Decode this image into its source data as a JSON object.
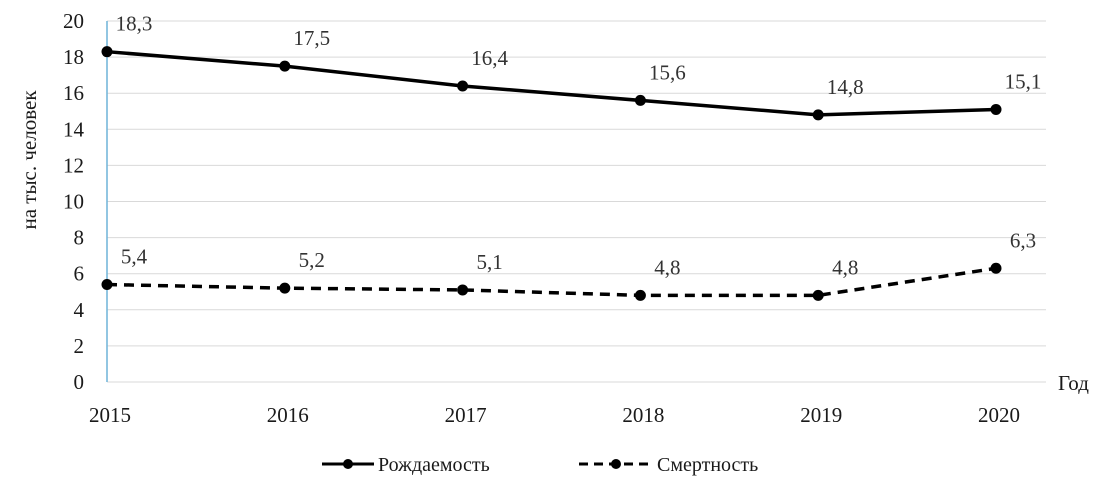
{
  "chart_data": {
    "type": "line",
    "title": "",
    "xlabel": "Год",
    "ylabel": "на тыс. человек",
    "x": [
      "2015",
      "2016",
      "2017",
      "2018",
      "2019",
      "2020"
    ],
    "ylim": [
      0,
      20
    ],
    "yticks": [
      "0",
      "2",
      "4",
      "6",
      "8",
      "10",
      "12",
      "14",
      "16",
      "18",
      "20"
    ],
    "grid": true,
    "legend_position": "bottom",
    "series": [
      {
        "name": "Рождаемость",
        "values": [
          18.3,
          17.5,
          16.4,
          15.6,
          14.8,
          15.1
        ],
        "labels": [
          "18,3",
          "17,5",
          "16,4",
          "15,6",
          "14,8",
          "15,1"
        ],
        "line_style": "solid",
        "color": "#000000"
      },
      {
        "name": "Смертность",
        "values": [
          5.4,
          5.2,
          5.1,
          4.8,
          4.8,
          6.3
        ],
        "labels": [
          "5,4",
          "5,2",
          "5,1",
          "4,8",
          "4,8",
          "6,3"
        ],
        "line_style": "dashed",
        "color": "#000000"
      }
    ],
    "colors": {
      "gridline": "#d9d9d9",
      "axis_line": "#6fb4d8"
    }
  }
}
